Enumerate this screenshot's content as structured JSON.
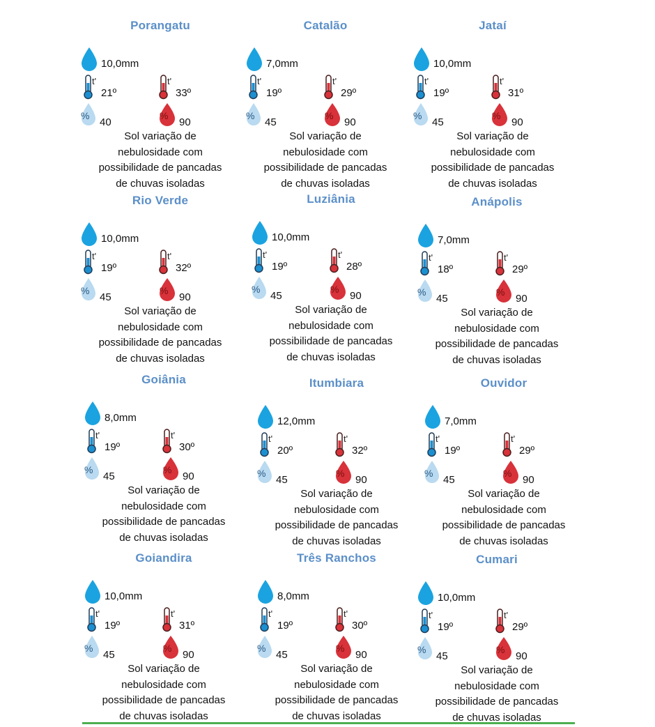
{
  "colors": {
    "title": "#5b8fc8",
    "rain_drop": "#1aa3e0",
    "cold": "#1b8fd0",
    "cold_humidity": "#b9daf0",
    "hot": "#d8323a",
    "rule": "#4caf50"
  },
  "description": [
    "Sol variação de",
    "nebulosidade com",
    "possibilidade de pancadas",
    "de chuvas isoladas"
  ],
  "thermo_label": "t'",
  "humidity_symbol": "%",
  "cities": [
    {
      "name": "Porangatu",
      "rain": "10,0mm",
      "tmin": "21º",
      "tmax": "33º",
      "hmin": "40",
      "hmax": "90",
      "desc": [
        "Sol variação de",
        "nebulosidade com",
        "possibilidade de pancadas",
        "de chuvas isoladas"
      ]
    },
    {
      "name": "Catalão",
      "rain": "7,0mm",
      "tmin": "19º",
      "tmax": "29º",
      "hmin": "45",
      "hmax": "90",
      "desc": [
        "Sol variação de",
        "nebulosidade com",
        "possibilidade de pancadas",
        "de chuvas isoladas"
      ]
    },
    {
      "name": "Jataí",
      "rain": "10,0mm",
      "tmin": "19º",
      "tmax": "31º",
      "hmin": "45",
      "hmax": "90",
      "desc": [
        "Sol variação de",
        "nebulosidade com",
        "possibilidade de pancadas",
        "de chuvas isoladas"
      ]
    },
    {
      "name": "Rio Verde",
      "rain": "10,0mm",
      "tmin": "19º",
      "tmax": "32º",
      "hmin": "45",
      "hmax": "90",
      "desc": [
        "Sol variação de",
        "nebulosidade com",
        "possibilidade de pancadas",
        "de chuvas isoladas"
      ]
    },
    {
      "name": "Luziânia",
      "rain": "10,0mm",
      "tmin": "19º",
      "tmax": "28º",
      "hmin": "45",
      "hmax": "90",
      "desc": [
        "Sol variação de",
        "nebulosidade com",
        "possibilidade de pancadas",
        "de chuvas isoladas"
      ]
    },
    {
      "name": "Anápolis",
      "rain": "7,0mm",
      "tmin": "18º",
      "tmax": "29º",
      "hmin": "45",
      "hmax": "90",
      "desc": [
        "Sol variação de",
        "nebulosidade com",
        "possibilidade de pancadas",
        "de chuvas isoladas"
      ]
    },
    {
      "name": "Goiânia",
      "rain": "8,0mm",
      "tmin": "19º",
      "tmax": "30º",
      "hmin": "45",
      "hmax": "90",
      "desc": [
        "Sol variação de",
        "nebulosidade com",
        "possibilidade de pancadas",
        "de chuvas isoladas"
      ]
    },
    {
      "name": "Itumbiara",
      "rain": "12,0mm",
      "tmin": "20º",
      "tmax": "32º",
      "hmin": "45",
      "hmax": "90",
      "desc": [
        "Sol variação de",
        "nebulosidade com",
        "possibilidade de pancadas",
        "de chuvas isoladas"
      ]
    },
    {
      "name": "Ouvidor",
      "rain": "7,0mm",
      "tmin": "19º",
      "tmax": "29º",
      "hmin": "45",
      "hmax": "90",
      "desc": [
        "Sol variação de",
        "nebulosidade com",
        "possibilidade de pancadas",
        "de chuvas isoladas"
      ]
    },
    {
      "name": "Goiandira",
      "rain": "10,0mm",
      "tmin": "19º",
      "tmax": "31º",
      "hmin": "45",
      "hmax": "90",
      "desc": [
        "Sol variação de",
        "nebulosidade com",
        "possibilidade de pancadas",
        "de chuvas isoladas"
      ]
    },
    {
      "name": "Três Ranchos",
      "rain": "8,0mm",
      "tmin": "19º",
      "tmax": "30º",
      "hmin": "45",
      "hmax": "90",
      "desc": [
        "Sol variação de",
        "nebulosidade com",
        "possibilidade de pancadas",
        "de chuvas isoladas"
      ]
    },
    {
      "name": "Cumari",
      "rain": "10,0mm",
      "tmin": "19º",
      "tmax": "29º",
      "hmin": "45",
      "hmax": "90",
      "desc": [
        "Sol variação de",
        "nebulosidade com",
        "possibilidade de pancadas",
        "de chuvas isoladas"
      ]
    }
  ]
}
